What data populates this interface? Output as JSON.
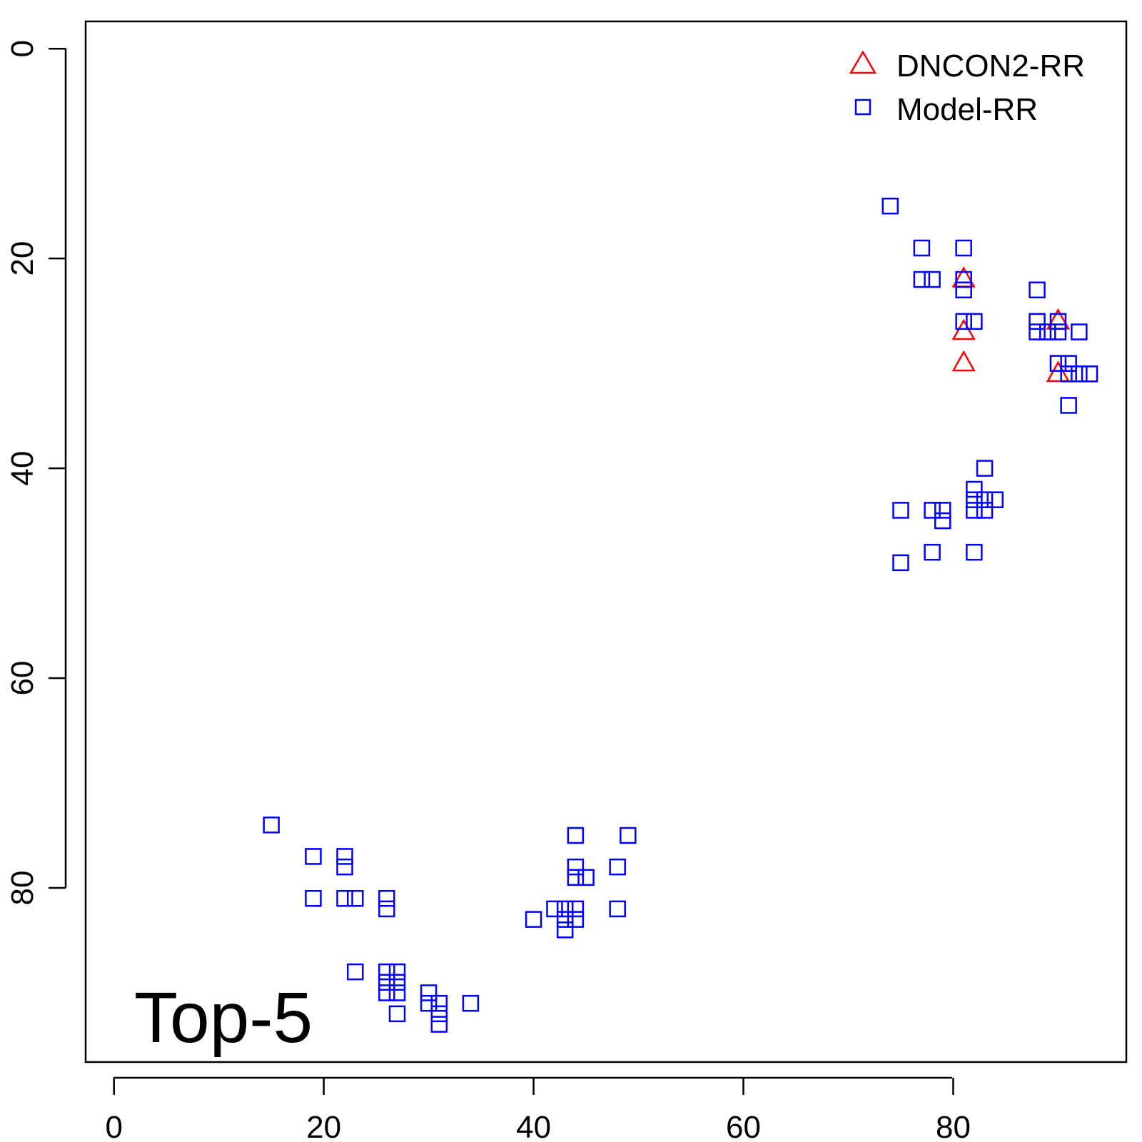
{
  "chart_data": {
    "type": "scatter",
    "panel_label": "Top-5",
    "xlabel": "",
    "ylabel": "",
    "xlim": [
      -2.7,
      96.5
    ],
    "ylim": [
      -2.6,
      96.6
    ],
    "y_reversed": true,
    "grid": false,
    "legend_position": "top-right",
    "x_ticks": [
      0,
      20,
      40,
      60,
      80
    ],
    "y_ticks": [
      0,
      20,
      40,
      60,
      80
    ],
    "x_tick_labels": [
      "0",
      "20",
      "40",
      "60",
      "80"
    ],
    "y_tick_labels": [
      "0",
      "20",
      "40",
      "60",
      "80"
    ],
    "series": [
      {
        "name": "DNCON2-RR",
        "marker": "triangle",
        "color": "#ff0000",
        "points": [
          [
            81,
            22
          ],
          [
            81,
            27
          ],
          [
            81,
            30
          ],
          [
            90,
            26
          ],
          [
            90,
            31
          ]
        ]
      },
      {
        "name": "Model-RR",
        "marker": "square",
        "color": "#0000ff",
        "points": [
          [
            74,
            15
          ],
          [
            77,
            19
          ],
          [
            81,
            19
          ],
          [
            77,
            22
          ],
          [
            78,
            22
          ],
          [
            81,
            22
          ],
          [
            81,
            23
          ],
          [
            81,
            26
          ],
          [
            82,
            26
          ],
          [
            88,
            23
          ],
          [
            88,
            26
          ],
          [
            88,
            27
          ],
          [
            89,
            27
          ],
          [
            90,
            26
          ],
          [
            90,
            27
          ],
          [
            92,
            27
          ],
          [
            90,
            30
          ],
          [
            91,
            30
          ],
          [
            91,
            31
          ],
          [
            92,
            31
          ],
          [
            93,
            31
          ],
          [
            91,
            34
          ],
          [
            83,
            40
          ],
          [
            82,
            42
          ],
          [
            82,
            43
          ],
          [
            82,
            44
          ],
          [
            83,
            43
          ],
          [
            83,
            44
          ],
          [
            84,
            43
          ],
          [
            75,
            44
          ],
          [
            78,
            44
          ],
          [
            79,
            44
          ],
          [
            79,
            45
          ],
          [
            78,
            48
          ],
          [
            82,
            48
          ],
          [
            75,
            49
          ],
          [
            15,
            74
          ],
          [
            19,
            77
          ],
          [
            22,
            77
          ],
          [
            22,
            78
          ],
          [
            19,
            81
          ],
          [
            22,
            81
          ],
          [
            23,
            81
          ],
          [
            26,
            81
          ],
          [
            26,
            82
          ],
          [
            23,
            88
          ],
          [
            26,
            88
          ],
          [
            27,
            88
          ],
          [
            26,
            89
          ],
          [
            27,
            89
          ],
          [
            26,
            90
          ],
          [
            27,
            90
          ],
          [
            27,
            92
          ],
          [
            30,
            90
          ],
          [
            30,
            91
          ],
          [
            31,
            91
          ],
          [
            31,
            92
          ],
          [
            31,
            93
          ],
          [
            34,
            91
          ],
          [
            44,
            75
          ],
          [
            49,
            75
          ],
          [
            44,
            78
          ],
          [
            48,
            78
          ],
          [
            44,
            79
          ],
          [
            45,
            79
          ],
          [
            42,
            82
          ],
          [
            43,
            82
          ],
          [
            44,
            82
          ],
          [
            48,
            82
          ],
          [
            40,
            83
          ],
          [
            43,
            83
          ],
          [
            44,
            83
          ],
          [
            43,
            84
          ]
        ]
      }
    ]
  }
}
